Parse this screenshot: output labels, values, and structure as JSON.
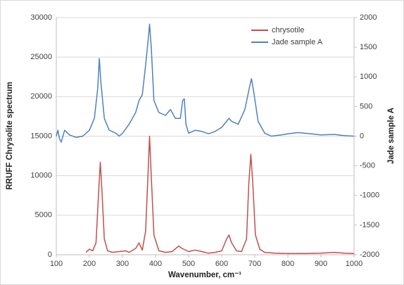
{
  "chart_data": {
    "type": "line",
    "x_label": "Wavenumber, cm⁻¹",
    "y_label": "RRUFF Chrysolite spectrum",
    "y2_label": "Jade sample A",
    "xlim": [
      100,
      1000
    ],
    "xticks": [
      100,
      200,
      300,
      400,
      500,
      600,
      700,
      800,
      900,
      1000
    ],
    "ylim": [
      0,
      30000
    ],
    "yticks": [
      0,
      5000,
      10000,
      15000,
      20000,
      25000,
      30000
    ],
    "y2lim": [
      -2000,
      2000
    ],
    "y2ticks": [
      -2000,
      -1500,
      -1000,
      -500,
      0,
      500,
      1000,
      1500,
      2000
    ],
    "grid": true,
    "legend": "upper right",
    "series": [
      {
        "name": "chrysotile",
        "color": "#c0504d",
        "axis": "y",
        "x": [
          190,
          200,
          210,
          220,
          228,
          233,
          238,
          245,
          255,
          270,
          290,
          310,
          320,
          340,
          350,
          360,
          370,
          377,
          382,
          387,
          395,
          410,
          430,
          450,
          470,
          480,
          500,
          520,
          540,
          560,
          580,
          600,
          615,
          622,
          630,
          645,
          660,
          675,
          682,
          688,
          694,
          702,
          715,
          730,
          760,
          800,
          850,
          900,
          940,
          970,
          1000
        ],
        "values": [
          300,
          700,
          500,
          1500,
          8000,
          11700,
          8000,
          2000,
          500,
          300,
          400,
          500,
          300,
          800,
          1500,
          600,
          3000,
          10000,
          15000,
          10000,
          2500,
          500,
          300,
          400,
          1100,
          800,
          400,
          600,
          400,
          200,
          300,
          500,
          2000,
          2500,
          1500,
          500,
          400,
          2000,
          9000,
          12700,
          9000,
          2500,
          700,
          300,
          200,
          150,
          150,
          200,
          300,
          200,
          150
        ]
      },
      {
        "name": "Jade sample A",
        "color": "#4f81bd",
        "axis": "y2",
        "x": [
          100,
          105,
          110,
          115,
          125,
          140,
          160,
          180,
          200,
          215,
          225,
          230,
          235,
          245,
          260,
          280,
          290,
          300,
          320,
          340,
          350,
          360,
          370,
          378,
          382,
          387,
          395,
          410,
          430,
          445,
          460,
          475,
          482,
          487,
          492,
          500,
          520,
          540,
          560,
          580,
          600,
          615,
          622,
          630,
          650,
          670,
          685,
          690,
          698,
          710,
          730,
          750,
          780,
          800,
          830,
          850,
          870,
          900,
          940,
          970,
          1000
        ],
        "values": [
          0,
          100,
          -50,
          -100,
          100,
          20,
          -20,
          0,
          100,
          300,
          800,
          1310,
          900,
          300,
          100,
          50,
          0,
          50,
          200,
          400,
          600,
          700,
          1200,
          1650,
          1890,
          1500,
          600,
          400,
          350,
          450,
          300,
          300,
          600,
          630,
          200,
          50,
          100,
          80,
          40,
          80,
          150,
          250,
          300,
          250,
          200,
          450,
          850,
          970,
          700,
          250,
          50,
          0,
          20,
          40,
          60,
          50,
          40,
          20,
          30,
          10,
          0
        ]
      }
    ]
  }
}
